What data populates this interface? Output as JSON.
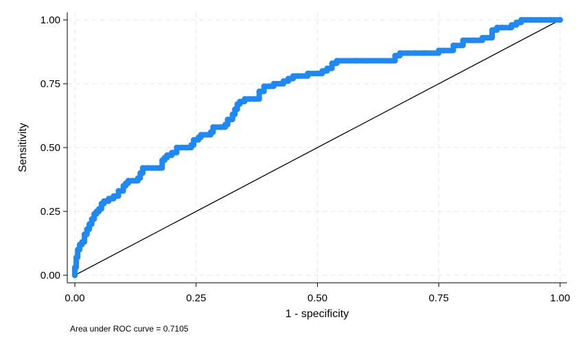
{
  "chart_data": {
    "type": "line",
    "title": "",
    "xlabel": "1 - specificity",
    "ylabel": "Sensitivity",
    "xlim": [
      0,
      1
    ],
    "ylim": [
      0,
      1
    ],
    "x_ticks": [
      "0.00",
      "0.25",
      "0.50",
      "0.75",
      "1.00"
    ],
    "y_ticks": [
      "0.00",
      "0.25",
      "0.50",
      "0.75",
      "1.00"
    ],
    "grid": true,
    "note": "Area under ROC curve = 0.7105",
    "colors": {
      "roc": "#1e88f5",
      "reference": "#000000",
      "grid": "#e6e6e6"
    },
    "series": [
      {
        "x": [
          0,
          0,
          0.003,
          0.006,
          0.01,
          0.015,
          0.02,
          0.025,
          0.03,
          0.035,
          0.04,
          0.045,
          0.05,
          0.055,
          0.06,
          0.065,
          0.07,
          0.08,
          0.09,
          0.1,
          0.105,
          0.11,
          0.12,
          0.13,
          0.135,
          0.14,
          0.15,
          0.16,
          0.175,
          0.18,
          0.185,
          0.19,
          0.2,
          0.21,
          0.22,
          0.23,
          0.24,
          0.245,
          0.255,
          0.26,
          0.27,
          0.28,
          0.285,
          0.3,
          0.31,
          0.315,
          0.325,
          0.33,
          0.335,
          0.34,
          0.35,
          0.36,
          0.37,
          0.38,
          0.39,
          0.4,
          0.41,
          0.43,
          0.44,
          0.45,
          0.46,
          0.48,
          0.5,
          0.51,
          0.52,
          0.53,
          0.54,
          0.56,
          0.58,
          0.6,
          0.65,
          0.66,
          0.67,
          0.7,
          0.72,
          0.75,
          0.76,
          0.78,
          0.8,
          0.82,
          0.84,
          0.85,
          0.86,
          0.87,
          0.88,
          0.9,
          0.91,
          0.92,
          0.94,
          0.96,
          0.98,
          1.0
        ],
        "y": [
          0,
          0.03,
          0.07,
          0.1,
          0.12,
          0.13,
          0.16,
          0.18,
          0.2,
          0.22,
          0.24,
          0.25,
          0.26,
          0.28,
          0.29,
          0.29,
          0.3,
          0.31,
          0.33,
          0.35,
          0.36,
          0.37,
          0.37,
          0.38,
          0.4,
          0.42,
          0.42,
          0.42,
          0.42,
          0.45,
          0.46,
          0.47,
          0.48,
          0.5,
          0.5,
          0.5,
          0.51,
          0.53,
          0.54,
          0.55,
          0.55,
          0.56,
          0.58,
          0.58,
          0.59,
          0.61,
          0.63,
          0.65,
          0.67,
          0.68,
          0.69,
          0.69,
          0.69,
          0.72,
          0.74,
          0.74,
          0.75,
          0.76,
          0.77,
          0.78,
          0.78,
          0.79,
          0.79,
          0.8,
          0.81,
          0.83,
          0.84,
          0.84,
          0.84,
          0.84,
          0.84,
          0.86,
          0.87,
          0.87,
          0.87,
          0.88,
          0.88,
          0.9,
          0.92,
          0.92,
          0.93,
          0.93,
          0.96,
          0.97,
          0.97,
          0.98,
          0.99,
          1.0,
          1.0,
          1.0,
          1.0,
          1.0
        ]
      },
      {
        "x": [
          0,
          1
        ],
        "y": [
          0,
          1
        ]
      }
    ]
  }
}
